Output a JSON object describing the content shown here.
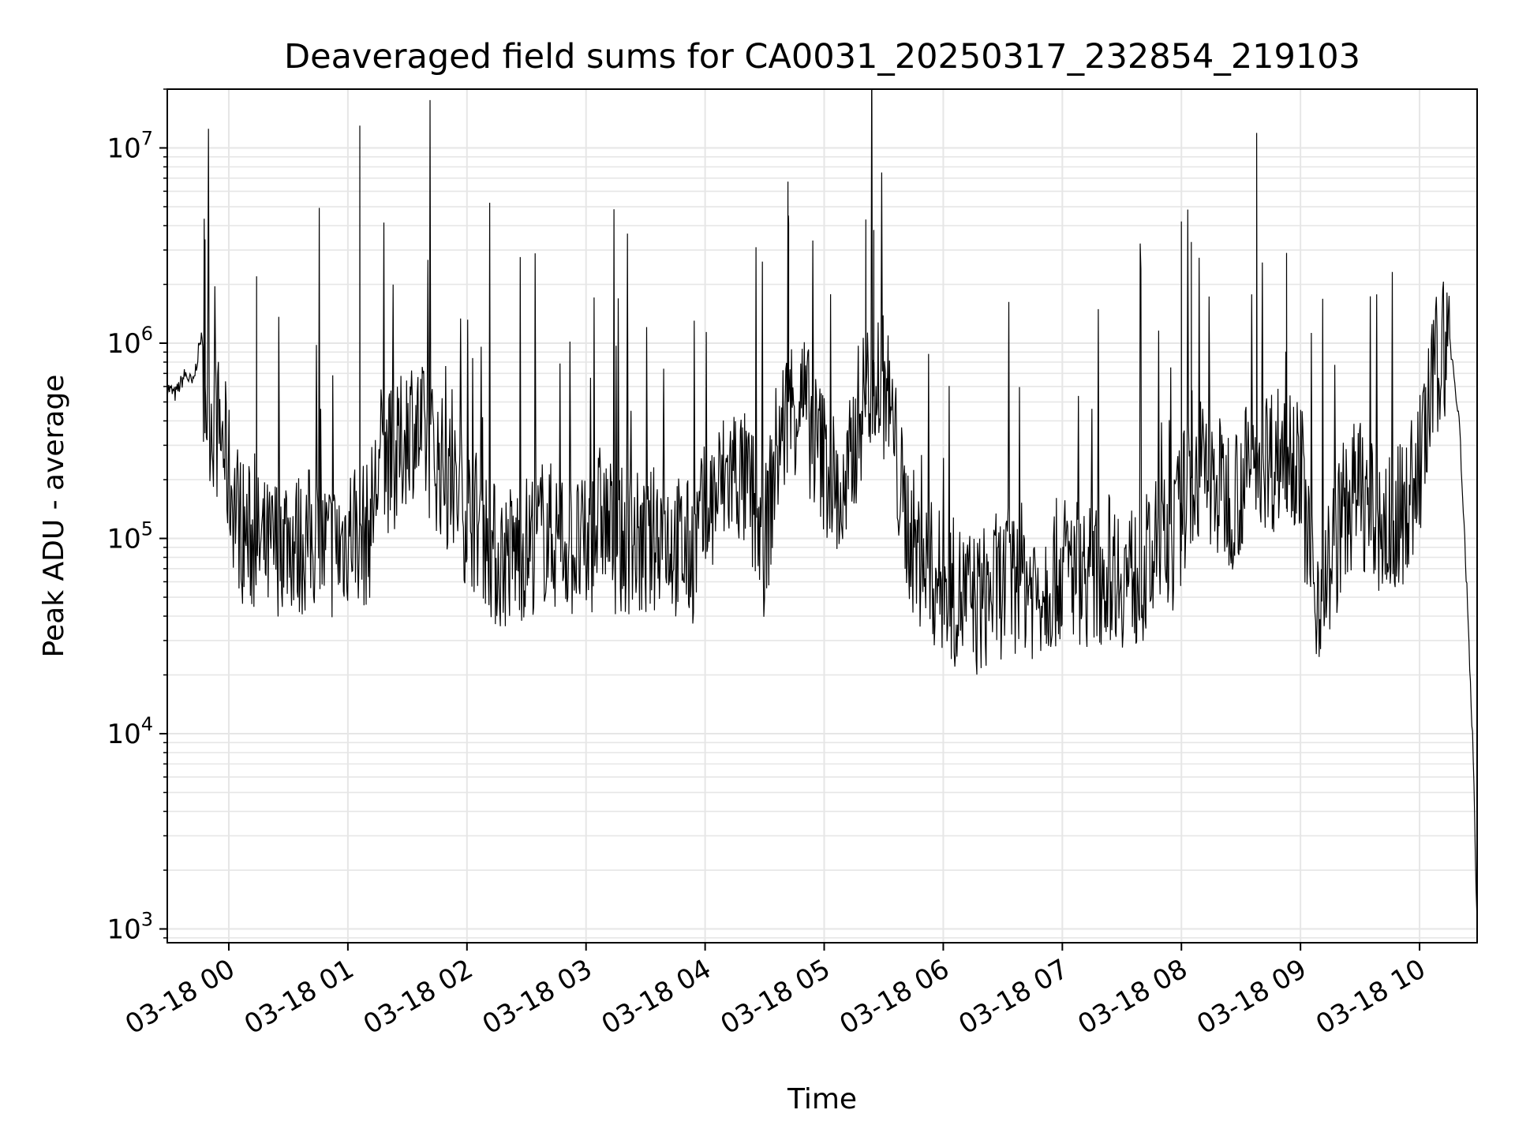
{
  "chart_data": {
    "type": "line",
    "title": "Deaveraged field sums for CA0031_20250317_232854_219103",
    "xlabel": "Time",
    "ylabel": "Peak ADU - average",
    "yscale": "log",
    "ylim": [
      850,
      20000000
    ],
    "xlim": [
      "2025-03-17 23:29",
      "2025-03-18 10:29"
    ],
    "grid": true,
    "line_color": "#000000",
    "grid_color": "#e6e6e6",
    "y_ticks": [
      {
        "value": 1000,
        "base": "10",
        "exp": "3"
      },
      {
        "value": 10000,
        "base": "10",
        "exp": "4"
      },
      {
        "value": 100000,
        "base": "10",
        "exp": "5"
      },
      {
        "value": 1000000,
        "base": "10",
        "exp": "6"
      },
      {
        "value": 10000000,
        "base": "10",
        "exp": "7"
      }
    ],
    "x_ticks": [
      {
        "value": "2025-03-18 00:00",
        "label": "03-18 00"
      },
      {
        "value": "2025-03-18 01:00",
        "label": "03-18 01"
      },
      {
        "value": "2025-03-18 02:00",
        "label": "03-18 02"
      },
      {
        "value": "2025-03-18 03:00",
        "label": "03-18 03"
      },
      {
        "value": "2025-03-18 04:00",
        "label": "03-18 04"
      },
      {
        "value": "2025-03-18 05:00",
        "label": "03-18 05"
      },
      {
        "value": "2025-03-18 06:00",
        "label": "03-18 06"
      },
      {
        "value": "2025-03-18 07:00",
        "label": "03-18 07"
      },
      {
        "value": "2025-03-18 08:00",
        "label": "03-18 08"
      },
      {
        "value": "2025-03-18 09:00",
        "label": "03-18 09"
      },
      {
        "value": "2025-03-18 10:00",
        "label": "03-18 10"
      }
    ],
    "series": [
      {
        "x": [
          "2025-03-17 23:29",
          "2025-03-17 23:33",
          "2025-03-17 23:38",
          "2025-03-17 23:42",
          "2025-03-17 23:46",
          "2025-03-17 23:47",
          "2025-03-17 23:48",
          "2025-03-17 23:52",
          "2025-03-17 23:57",
          "2025-03-18 00:01",
          "2025-03-18 00:07",
          "2025-03-18 00:14",
          "2025-03-18 00:21",
          "2025-03-18 00:28",
          "2025-03-18 00:35",
          "2025-03-18 00:42",
          "2025-03-18 00:49",
          "2025-03-18 00:56",
          "2025-03-18 01:03",
          "2025-03-18 01:06",
          "2025-03-18 01:10",
          "2025-03-18 01:17",
          "2025-03-18 01:24",
          "2025-03-18 01:31",
          "2025-03-18 01:38",
          "2025-03-18 01:45",
          "2025-03-18 01:52",
          "2025-03-18 02:00",
          "2025-03-18 02:07",
          "2025-03-18 02:15",
          "2025-03-18 02:22",
          "2025-03-18 02:30",
          "2025-03-18 02:38",
          "2025-03-18 02:45",
          "2025-03-18 02:53",
          "2025-03-18 03:00",
          "2025-03-18 03:08",
          "2025-03-18 03:15",
          "2025-03-18 03:23",
          "2025-03-18 03:30",
          "2025-03-18 03:38",
          "2025-03-18 03:45",
          "2025-03-18 03:53",
          "2025-03-18 04:00",
          "2025-03-18 04:08",
          "2025-03-18 04:15",
          "2025-03-18 04:23",
          "2025-03-18 04:30",
          "2025-03-18 04:36",
          "2025-03-18 04:42",
          "2025-03-18 04:48",
          "2025-03-18 04:55",
          "2025-03-18 05:02",
          "2025-03-18 05:10",
          "2025-03-18 05:17",
          "2025-03-18 05:25",
          "2025-03-18 05:32",
          "2025-03-18 05:40",
          "2025-03-18 05:47",
          "2025-03-18 05:55",
          "2025-03-18 06:02",
          "2025-03-18 06:10",
          "2025-03-18 06:17",
          "2025-03-18 06:25",
          "2025-03-18 06:32",
          "2025-03-18 06:40",
          "2025-03-18 06:47",
          "2025-03-18 06:55",
          "2025-03-18 07:02",
          "2025-03-18 07:10",
          "2025-03-18 07:17",
          "2025-03-18 07:25",
          "2025-03-18 07:32",
          "2025-03-18 07:40",
          "2025-03-18 07:47",
          "2025-03-18 07:55",
          "2025-03-18 08:02",
          "2025-03-18 08:10",
          "2025-03-18 08:17",
          "2025-03-18 08:25",
          "2025-03-18 08:32",
          "2025-03-18 08:40",
          "2025-03-18 08:47",
          "2025-03-18 08:55",
          "2025-03-18 09:00",
          "2025-03-18 09:07",
          "2025-03-18 09:15",
          "2025-03-18 09:22",
          "2025-03-18 09:30",
          "2025-03-18 09:37",
          "2025-03-18 09:45",
          "2025-03-18 09:52",
          "2025-03-18 10:00",
          "2025-03-18 10:05",
          "2025-03-18 10:10",
          "2025-03-18 10:15",
          "2025-03-18 10:20",
          "2025-03-18 10:24",
          "2025-03-18 10:27",
          "2025-03-18 10:29"
        ],
        "y": [
          600000,
          550000,
          700000,
          620000,
          1100000,
          900000,
          600000,
          450000,
          350000,
          200000,
          120000,
          100000,
          90000,
          120000,
          100000,
          110000,
          95000,
          100000,
          130000,
          120000,
          110000,
          300000,
          250000,
          450000,
          350000,
          280000,
          200000,
          150000,
          130000,
          85000,
          90000,
          100000,
          120000,
          110000,
          100000,
          90000,
          150000,
          100000,
          110000,
          90000,
          130000,
          100000,
          90000,
          140000,
          200000,
          250000,
          180000,
          100000,
          300000,
          500000,
          600000,
          350000,
          250000,
          150000,
          450000,
          800000,
          600000,
          150000,
          90000,
          70000,
          60000,
          55000,
          50000,
          60000,
          65000,
          70000,
          60000,
          70000,
          80000,
          75000,
          70000,
          80000,
          70000,
          70000,
          90000,
          100000,
          180000,
          250000,
          200000,
          180000,
          220000,
          300000,
          280000,
          350000,
          250000,
          55000,
          80000,
          150000,
          200000,
          130000,
          120000,
          150000,
          250000,
          500000,
          1000000,
          1100000,
          400000,
          50000,
          8000,
          1000
        ]
      }
    ],
    "spikes": [
      {
        "x": "2025-03-17 23:48",
        "y": 3400000
      },
      {
        "x": "2025-03-18 00:14",
        "y": 2200000
      },
      {
        "x": "2025-03-18 01:06",
        "y": 13000000
      },
      {
        "x": "2025-03-18 04:42",
        "y": 4500000
      },
      {
        "x": "2025-03-18 05:21",
        "y": 4300000
      },
      {
        "x": "2025-03-18 05:25",
        "y": 3800000
      },
      {
        "x": "2025-03-18 08:00",
        "y": 4200000
      },
      {
        "x": "2025-03-18 08:05",
        "y": 3300000
      },
      {
        "x": "2025-03-18 08:38",
        "y": 3500000
      },
      {
        "x": "2025-03-18 08:53",
        "y": 2900000
      }
    ]
  }
}
